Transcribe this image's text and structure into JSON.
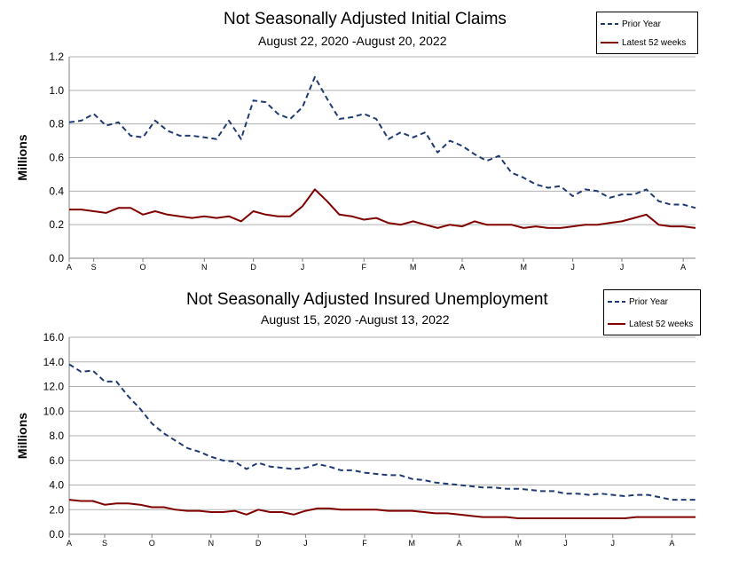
{
  "chart_data": [
    {
      "type": "line",
      "title": "Not Seasonally Adjusted Initial Claims",
      "subtitle": "August 22, 2020 ‑August 20, 2022",
      "ylabel": "Millions",
      "xlabel": "",
      "ylim": [
        0,
        1.2
      ],
      "yticks": [
        "0.0",
        "0.2",
        "0.4",
        "0.6",
        "0.8",
        "1.0",
        "1.2"
      ],
      "x_tick_labels": [
        {
          "label": "A",
          "week": 0
        },
        {
          "label": "S",
          "week": 2
        },
        {
          "label": "O",
          "week": 6
        },
        {
          "label": "N",
          "week": 11
        },
        {
          "label": "D",
          "week": 15
        },
        {
          "label": "J",
          "week": 19
        },
        {
          "label": "F",
          "week": 24
        },
        {
          "label": "M",
          "week": 28
        },
        {
          "label": "A",
          "week": 32
        },
        {
          "label": "M",
          "week": 37
        },
        {
          "label": "J",
          "week": 41
        },
        {
          "label": "J",
          "week": 45
        },
        {
          "label": "A",
          "week": 50
        }
      ],
      "legend": {
        "position": "top-right",
        "entries": [
          "Prior Year",
          "Latest 52 weeks"
        ]
      },
      "series": [
        {
          "name": "Prior Year",
          "style": "dashed",
          "color": "#1F3A73",
          "values": [
            0.81,
            0.82,
            0.86,
            0.79,
            0.81,
            0.73,
            0.72,
            0.82,
            0.76,
            0.73,
            0.73,
            0.72,
            0.71,
            0.82,
            0.71,
            0.94,
            0.93,
            0.86,
            0.83,
            0.9,
            1.08,
            0.95,
            0.83,
            0.84,
            0.86,
            0.83,
            0.71,
            0.75,
            0.72,
            0.75,
            0.63,
            0.7,
            0.67,
            0.62,
            0.58,
            0.61,
            0.51,
            0.48,
            0.44,
            0.42,
            0.43,
            0.37,
            0.41,
            0.4,
            0.36,
            0.38,
            0.38,
            0.41,
            0.34,
            0.32,
            0.32,
            0.3
          ]
        },
        {
          "name": "Latest 52 weeks",
          "style": "solid",
          "color": "#800000",
          "values": [
            0.29,
            0.29,
            0.28,
            0.27,
            0.3,
            0.3,
            0.26,
            0.28,
            0.26,
            0.25,
            0.24,
            0.25,
            0.24,
            0.25,
            0.22,
            0.28,
            0.26,
            0.25,
            0.25,
            0.31,
            0.41,
            0.34,
            0.26,
            0.25,
            0.23,
            0.24,
            0.21,
            0.2,
            0.22,
            0.2,
            0.18,
            0.2,
            0.19,
            0.22,
            0.2,
            0.2,
            0.2,
            0.18,
            0.19,
            0.18,
            0.18,
            0.19,
            0.2,
            0.2,
            0.21,
            0.22,
            0.24,
            0.26,
            0.2,
            0.19,
            0.19,
            0.18
          ]
        }
      ]
    },
    {
      "type": "line",
      "title": "Not Seasonally Adjusted Insured Unemployment",
      "subtitle": "August 15, 2020 ‑August 13, 2022",
      "ylabel": "Millions",
      "xlabel": "",
      "ylim": [
        0,
        16
      ],
      "yticks": [
        "0.0",
        "2.0",
        "4.0",
        "6.0",
        "8.0",
        "10.0",
        "12.0",
        "14.0",
        "16.0"
      ],
      "x_tick_labels": [
        {
          "label": "A",
          "week": 0
        },
        {
          "label": "S",
          "week": 3
        },
        {
          "label": "O",
          "week": 7
        },
        {
          "label": "N",
          "week": 12
        },
        {
          "label": "D",
          "week": 16
        },
        {
          "label": "J",
          "week": 20
        },
        {
          "label": "F",
          "week": 25
        },
        {
          "label": "M",
          "week": 29
        },
        {
          "label": "A",
          "week": 33
        },
        {
          "label": "M",
          "week": 38
        },
        {
          "label": "J",
          "week": 42
        },
        {
          "label": "J",
          "week": 46
        },
        {
          "label": "A",
          "week": 51
        }
      ],
      "legend": {
        "position": "top-right",
        "entries": [
          "Prior Year",
          "Latest 52 weeks"
        ]
      },
      "series": [
        {
          "name": "Prior Year",
          "style": "dashed",
          "color": "#1F3A73",
          "values": [
            13.8,
            13.2,
            13.3,
            12.4,
            12.4,
            11.2,
            10.2,
            9.0,
            8.2,
            7.6,
            7.0,
            6.7,
            6.3,
            6.0,
            5.9,
            5.3,
            5.8,
            5.5,
            5.4,
            5.3,
            5.4,
            5.7,
            5.5,
            5.2,
            5.2,
            5.0,
            4.9,
            4.8,
            4.8,
            4.5,
            4.4,
            4.2,
            4.1,
            4.0,
            3.9,
            3.8,
            3.8,
            3.7,
            3.7,
            3.6,
            3.5,
            3.5,
            3.3,
            3.3,
            3.2,
            3.3,
            3.2,
            3.1,
            3.2,
            3.2,
            3.0,
            2.8,
            2.8,
            2.8
          ]
        },
        {
          "name": "Latest 52 weeks",
          "style": "solid",
          "color": "#800000",
          "values": [
            2.8,
            2.7,
            2.7,
            2.4,
            2.5,
            2.5,
            2.4,
            2.2,
            2.2,
            2.0,
            1.9,
            1.9,
            1.8,
            1.8,
            1.9,
            1.6,
            2.0,
            1.8,
            1.8,
            1.6,
            1.9,
            2.1,
            2.1,
            2.0,
            2.0,
            2.0,
            2.0,
            1.9,
            1.9,
            1.9,
            1.8,
            1.7,
            1.7,
            1.6,
            1.5,
            1.4,
            1.4,
            1.4,
            1.3,
            1.3,
            1.3,
            1.3,
            1.3,
            1.3,
            1.3,
            1.3,
            1.3,
            1.3,
            1.4,
            1.4,
            1.4,
            1.4,
            1.4,
            1.4
          ]
        }
      ]
    }
  ]
}
